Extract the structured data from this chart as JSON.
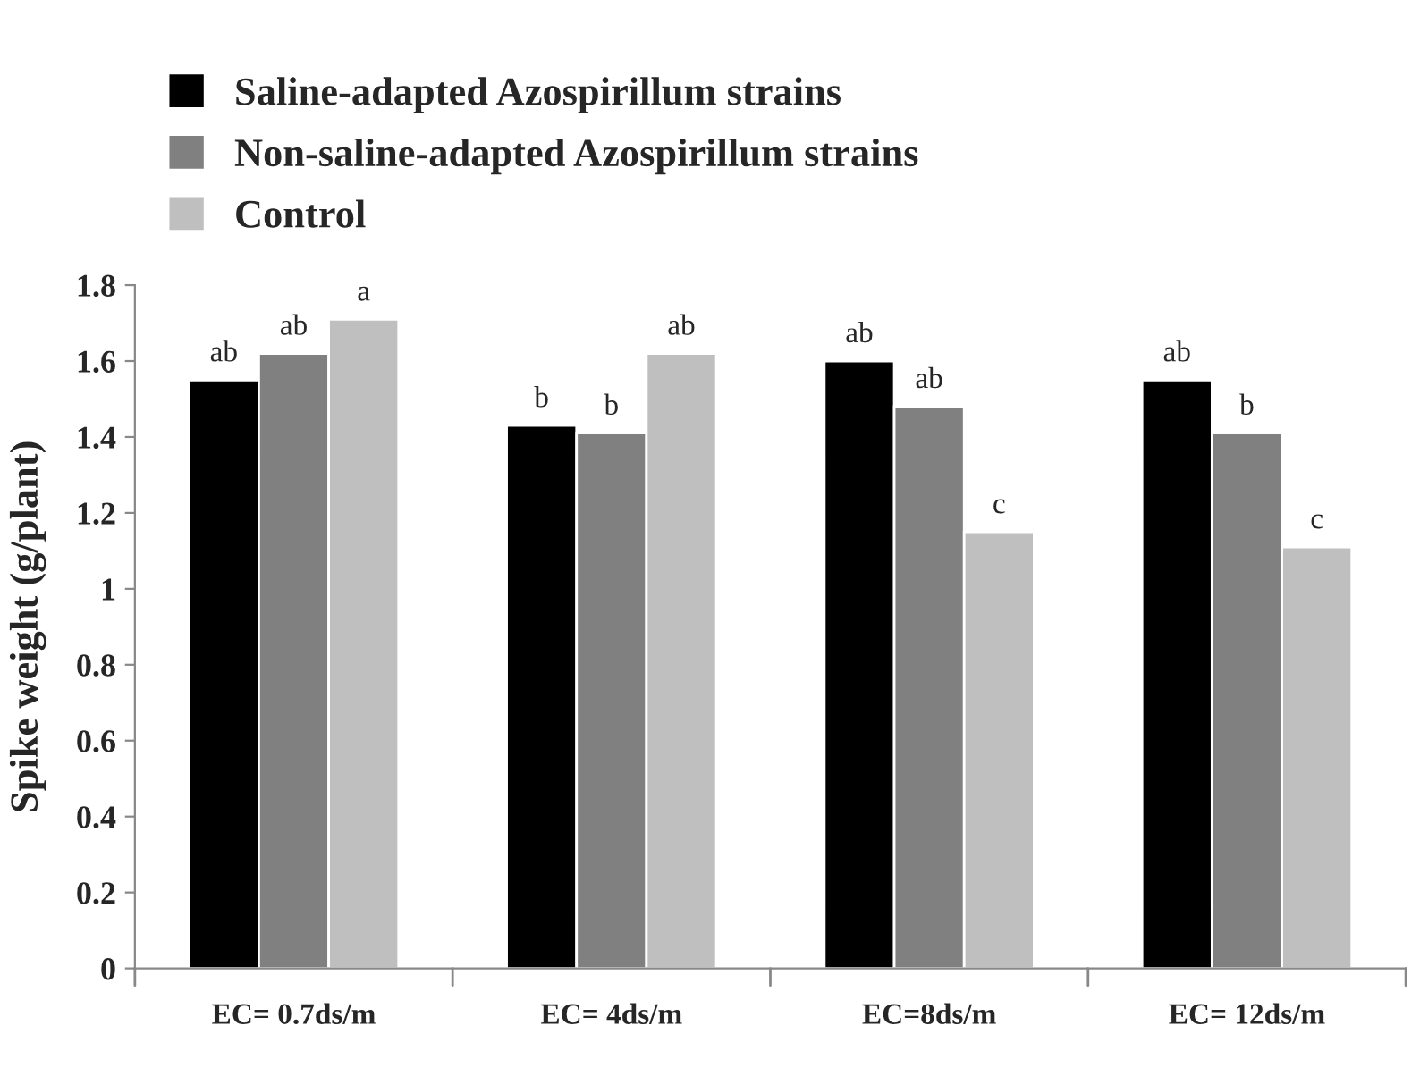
{
  "chart_data": {
    "type": "bar",
    "ylabel": "Spike weight (g/plant)",
    "categories": [
      "EC= 0.7ds/m",
      "EC= 4ds/m",
      "EC=8ds/m",
      "EC= 12ds/m"
    ],
    "series": [
      {
        "name": "Saline-adapted Azospirillum strains",
        "color": "#000000",
        "values": [
          1.55,
          1.43,
          1.6,
          1.55
        ],
        "value_labels": [
          "ab",
          "b",
          "ab",
          "ab"
        ]
      },
      {
        "name": "Non-saline-adapted Azospirillum strains",
        "color": "#808080",
        "values": [
          1.62,
          1.41,
          1.48,
          1.41
        ],
        "value_labels": [
          "ab",
          "b",
          "ab",
          "b"
        ]
      },
      {
        "name": "Control",
        "color": "#bfbfbf",
        "values": [
          1.71,
          1.62,
          1.15,
          1.11
        ],
        "value_labels": [
          "a",
          "ab",
          "c",
          "c"
        ]
      }
    ],
    "ylim": [
      0,
      1.8
    ],
    "yticks": [
      0,
      0.2,
      0.4,
      0.6,
      0.8,
      1,
      1.2,
      1.4,
      1.6,
      1.8
    ],
    "grid": false,
    "legend": "top left"
  }
}
